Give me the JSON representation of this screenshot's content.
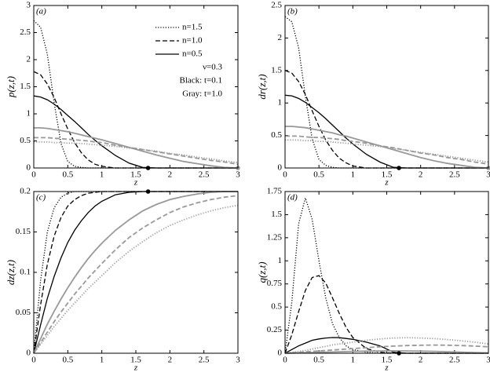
{
  "chart_data": [
    {
      "type": "line",
      "label": "(a)",
      "ylabel": "p(z,t)",
      "xlabel": "z",
      "xlim": [
        0,
        3
      ],
      "ylim": [
        0,
        3
      ],
      "xticks": [
        0,
        0.5,
        1,
        1.5,
        2,
        2.5,
        3
      ],
      "yticks": [
        0,
        0.5,
        1,
        1.5,
        2,
        2.5,
        3
      ],
      "legend": "upper right",
      "annotations": [
        "ν=0.3",
        "Black: t=0.1",
        "Gray: t=1.0"
      ],
      "x": [
        0,
        0.1,
        0.2,
        0.3,
        0.4,
        0.5,
        0.6,
        0.7,
        0.8,
        0.9,
        1.0,
        1.2,
        1.4,
        1.6,
        1.8,
        2.0,
        2.2,
        2.4,
        2.6,
        2.8,
        3.0
      ],
      "series": [
        {
          "name": "n=1.5",
          "color": "#000000",
          "dash": "dotted",
          "values": [
            2.72,
            2.6,
            2.1,
            1.2,
            0.45,
            0.12,
            0.03,
            0.01,
            0,
            0,
            0,
            0,
            0,
            0,
            0,
            0,
            0,
            0,
            0,
            0,
            0
          ]
        },
        {
          "name": "n=1.0",
          "color": "#000000",
          "dash": "dashed",
          "values": [
            1.78,
            1.72,
            1.55,
            1.3,
            1.0,
            0.72,
            0.47,
            0.28,
            0.15,
            0.07,
            0.03,
            0,
            0,
            0,
            0,
            0,
            0,
            0,
            0,
            0,
            0
          ]
        },
        {
          "name": "n=0.5",
          "color": "#000000",
          "dash": "solid",
          "values": [
            1.33,
            1.31,
            1.26,
            1.18,
            1.08,
            0.97,
            0.86,
            0.74,
            0.62,
            0.51,
            0.41,
            0.23,
            0.09,
            0.01,
            0,
            0,
            0,
            0,
            0,
            0,
            0
          ]
        },
        {
          "color": "#999999",
          "dash": "dotted",
          "values": [
            0.48,
            0.48,
            0.48,
            0.47,
            0.47,
            0.46,
            0.46,
            0.45,
            0.44,
            0.43,
            0.42,
            0.4,
            0.37,
            0.34,
            0.31,
            0.27,
            0.24,
            0.2,
            0.17,
            0.13,
            0.1
          ]
        },
        {
          "color": "#999999",
          "dash": "dashed",
          "values": [
            0.56,
            0.56,
            0.56,
            0.55,
            0.54,
            0.53,
            0.52,
            0.51,
            0.5,
            0.48,
            0.47,
            0.42,
            0.38,
            0.34,
            0.3,
            0.26,
            0.22,
            0.18,
            0.14,
            0.11,
            0.07
          ]
        },
        {
          "color": "#999999",
          "dash": "solid",
          "values": [
            0.74,
            0.74,
            0.73,
            0.71,
            0.69,
            0.67,
            0.64,
            0.61,
            0.58,
            0.55,
            0.52,
            0.45,
            0.38,
            0.31,
            0.24,
            0.18,
            0.12,
            0.08,
            0.04,
            0.01,
            0
          ]
        }
      ],
      "markers": [
        {
          "x": 1.68,
          "y": 0,
          "color": "#000000"
        },
        {
          "x": 3,
          "y": 0,
          "color": "#999999"
        }
      ]
    },
    {
      "type": "line",
      "label": "(b)",
      "ylabel": "dr(z,t)",
      "xlabel": "z",
      "xlim": [
        0,
        3
      ],
      "ylim": [
        0,
        2.5
      ],
      "xticks": [
        0,
        0.5,
        1,
        1.5,
        2,
        2.5,
        3
      ],
      "yticks": [
        0,
        0.5,
        1,
        1.5,
        2,
        2.5
      ],
      "x": [
        0,
        0.1,
        0.2,
        0.3,
        0.4,
        0.5,
        0.6,
        0.7,
        0.8,
        0.9,
        1.0,
        1.2,
        1.4,
        1.6,
        1.8,
        2.0,
        2.2,
        2.4,
        2.6,
        2.8,
        3.0
      ],
      "series": [
        {
          "color": "#000000",
          "dash": "dotted",
          "values": [
            2.33,
            2.25,
            1.85,
            1.1,
            0.45,
            0.13,
            0.04,
            0.01,
            0,
            0,
            0,
            0,
            0,
            0,
            0,
            0,
            0,
            0,
            0,
            0,
            0
          ]
        },
        {
          "color": "#000000",
          "dash": "dashed",
          "values": [
            1.5,
            1.46,
            1.33,
            1.13,
            0.88,
            0.64,
            0.43,
            0.27,
            0.15,
            0.08,
            0.03,
            0,
            0,
            0,
            0,
            0,
            0,
            0,
            0,
            0,
            0
          ]
        },
        {
          "color": "#000000",
          "dash": "solid",
          "values": [
            1.12,
            1.11,
            1.07,
            1.01,
            0.93,
            0.85,
            0.76,
            0.66,
            0.56,
            0.46,
            0.37,
            0.21,
            0.09,
            0.01,
            0,
            0,
            0,
            0,
            0,
            0,
            0
          ]
        },
        {
          "color": "#999999",
          "dash": "dotted",
          "values": [
            0.43,
            0.43,
            0.43,
            0.42,
            0.42,
            0.41,
            0.41,
            0.4,
            0.39,
            0.38,
            0.37,
            0.35,
            0.33,
            0.3,
            0.27,
            0.24,
            0.21,
            0.18,
            0.15,
            0.12,
            0.09
          ]
        },
        {
          "color": "#999999",
          "dash": "dashed",
          "values": [
            0.49,
            0.49,
            0.49,
            0.48,
            0.47,
            0.47,
            0.46,
            0.45,
            0.44,
            0.42,
            0.41,
            0.38,
            0.34,
            0.31,
            0.27,
            0.23,
            0.2,
            0.16,
            0.13,
            0.09,
            0.06
          ]
        },
        {
          "color": "#999999",
          "dash": "solid",
          "values": [
            0.64,
            0.64,
            0.63,
            0.62,
            0.6,
            0.58,
            0.56,
            0.54,
            0.51,
            0.49,
            0.46,
            0.4,
            0.34,
            0.28,
            0.22,
            0.16,
            0.11,
            0.07,
            0.04,
            0.01,
            0
          ]
        }
      ],
      "markers": [
        {
          "x": 1.68,
          "y": 0,
          "color": "#000000"
        },
        {
          "x": 3,
          "y": 0,
          "color": "#999999"
        }
      ]
    },
    {
      "type": "line",
      "label": "(c)",
      "ylabel": "dz(z,t)",
      "xlabel": "z",
      "xlim": [
        0,
        3
      ],
      "ylim": [
        0,
        0.2
      ],
      "xticks": [
        0,
        0.5,
        1,
        1.5,
        2,
        2.5,
        3
      ],
      "yticks": [
        0,
        0.05,
        0.1,
        0.15,
        0.2
      ],
      "x": [
        0,
        0.1,
        0.2,
        0.3,
        0.4,
        0.5,
        0.6,
        0.7,
        0.8,
        0.9,
        1.0,
        1.2,
        1.4,
        1.6,
        1.8,
        2.0,
        2.2,
        2.4,
        2.6,
        2.8,
        3.0
      ],
      "series": [
        {
          "color": "#000000",
          "dash": "dotted",
          "values": [
            0,
            0.09,
            0.15,
            0.18,
            0.193,
            0.198,
            0.2,
            0.2,
            0.2,
            0.2,
            0.2,
            0.2,
            0.2,
            0.2,
            0.2,
            0.2,
            0.2,
            0.2,
            0.2,
            0.2,
            0.2
          ]
        },
        {
          "color": "#000000",
          "dash": "dashed",
          "values": [
            0,
            0.06,
            0.11,
            0.145,
            0.168,
            0.182,
            0.19,
            0.195,
            0.198,
            0.199,
            0.2,
            0.2,
            0.2,
            0.2,
            0.2,
            0.2,
            0.2,
            0.2,
            0.2,
            0.2,
            0.2
          ]
        },
        {
          "color": "#000000",
          "dash": "solid",
          "values": [
            0,
            0.035,
            0.068,
            0.095,
            0.118,
            0.137,
            0.152,
            0.164,
            0.174,
            0.182,
            0.188,
            0.196,
            0.199,
            0.2,
            0.2,
            0.2,
            0.2,
            0.2,
            0.2,
            0.2,
            0.2
          ]
        },
        {
          "color": "#999999",
          "dash": "dotted",
          "values": [
            0,
            0.011,
            0.022,
            0.033,
            0.043,
            0.053,
            0.062,
            0.071,
            0.08,
            0.088,
            0.096,
            0.112,
            0.126,
            0.138,
            0.149,
            0.158,
            0.165,
            0.171,
            0.176,
            0.18,
            0.183
          ]
        },
        {
          "color": "#999999",
          "dash": "dashed",
          "values": [
            0,
            0.013,
            0.026,
            0.039,
            0.051,
            0.062,
            0.073,
            0.083,
            0.093,
            0.102,
            0.111,
            0.128,
            0.143,
            0.155,
            0.165,
            0.174,
            0.181,
            0.186,
            0.19,
            0.193,
            0.195
          ]
        },
        {
          "color": "#999999",
          "dash": "solid",
          "values": [
            0,
            0.018,
            0.036,
            0.052,
            0.067,
            0.081,
            0.094,
            0.106,
            0.117,
            0.127,
            0.136,
            0.152,
            0.165,
            0.176,
            0.184,
            0.19,
            0.194,
            0.197,
            0.199,
            0.2,
            0.2
          ]
        }
      ],
      "markers": [
        {
          "x": 1.68,
          "y": 0.2,
          "color": "#000000"
        }
      ]
    },
    {
      "type": "line",
      "label": "(d)",
      "ylabel": "q(z,t)",
      "xlabel": "z",
      "xlim": [
        0,
        3
      ],
      "ylim": [
        0,
        1.75
      ],
      "xticks": [
        0,
        0.5,
        1,
        1.5,
        2,
        2.5,
        3
      ],
      "yticks": [
        0,
        0.25,
        0.5,
        0.75,
        1,
        1.25,
        1.5,
        1.75
      ],
      "x": [
        0,
        0.1,
        0.2,
        0.3,
        0.4,
        0.5,
        0.6,
        0.7,
        0.8,
        0.9,
        1.0,
        1.2,
        1.4,
        1.6,
        1.8,
        2.0,
        2.2,
        2.4,
        2.6,
        2.8,
        3.0
      ],
      "series": [
        {
          "color": "#000000",
          "dash": "dotted",
          "values": [
            0,
            0.55,
            1.4,
            1.68,
            1.45,
            1.0,
            0.6,
            0.32,
            0.17,
            0.08,
            0.04,
            0.01,
            0,
            0,
            0,
            0,
            0,
            0,
            0,
            0,
            0
          ]
        },
        {
          "color": "#000000",
          "dash": "dashed",
          "values": [
            0,
            0.2,
            0.45,
            0.68,
            0.82,
            0.84,
            0.76,
            0.6,
            0.43,
            0.28,
            0.17,
            0.05,
            0.01,
            0,
            0,
            0,
            0,
            0,
            0,
            0,
            0
          ]
        },
        {
          "color": "#000000",
          "dash": "solid",
          "values": [
            0,
            0.04,
            0.08,
            0.11,
            0.14,
            0.155,
            0.165,
            0.17,
            0.168,
            0.16,
            0.15,
            0.12,
            0.08,
            0.01,
            0,
            0,
            0,
            0,
            0,
            0,
            0
          ]
        },
        {
          "color": "#999999",
          "dash": "dotted",
          "values": [
            0,
            0.01,
            0.02,
            0.03,
            0.045,
            0.06,
            0.075,
            0.09,
            0.1,
            0.11,
            0.12,
            0.14,
            0.155,
            0.165,
            0.168,
            0.165,
            0.158,
            0.148,
            0.135,
            0.12,
            0.1
          ]
        },
        {
          "color": "#999999",
          "dash": "dashed",
          "values": [
            0,
            0.005,
            0.01,
            0.015,
            0.02,
            0.025,
            0.03,
            0.035,
            0.04,
            0.045,
            0.05,
            0.06,
            0.07,
            0.077,
            0.083,
            0.087,
            0.088,
            0.087,
            0.083,
            0.077,
            0.07
          ]
        },
        {
          "color": "#999999",
          "dash": "solid",
          "values": [
            0,
            0.002,
            0.004,
            0.006,
            0.008,
            0.01,
            0.012,
            0.014,
            0.016,
            0.018,
            0.02,
            0.023,
            0.025,
            0.026,
            0.025,
            0.023,
            0.02,
            0.016,
            0.012,
            0.008,
            0.004
          ]
        }
      ],
      "markers": [
        {
          "x": 1.68,
          "y": 0,
          "color": "#000000"
        }
      ]
    }
  ]
}
